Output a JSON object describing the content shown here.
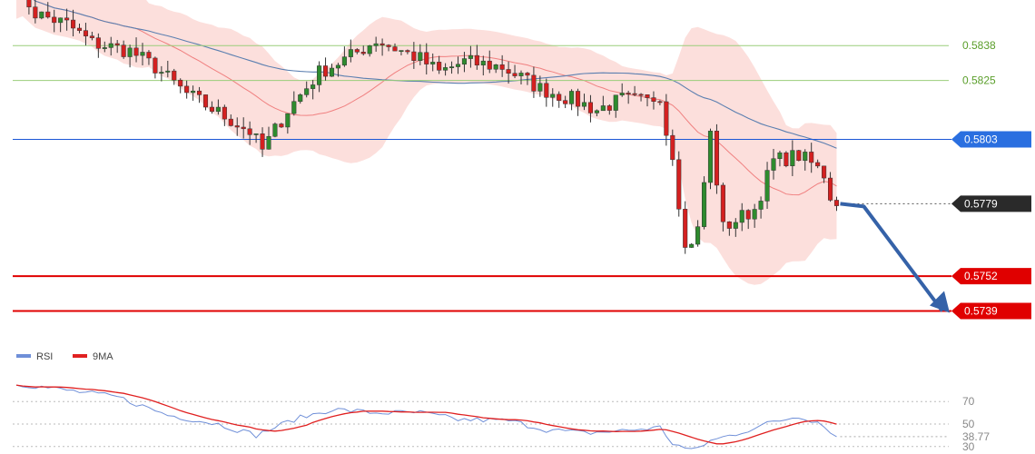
{
  "colors": {
    "bull": "#2e8b2e",
    "bear": "#d42020",
    "bb_fill": "#fbd4d0",
    "bb_mid": "#f08080",
    "ma_slow": "#5b7fb0",
    "resistance_lines": "#9acd7a",
    "resistance_text": "#5a9e2a",
    "pivot_line": "#1a56d6",
    "pivot_tag": "#2a6fe0",
    "support_line": "#e00000",
    "support_tag": "#e00000",
    "current_tag": "#2a2a2a",
    "arrow": "#3562a8",
    "rsi_line": "#6f8fd8",
    "rsi_ma_line": "#e02020"
  },
  "chart_data": {
    "type": "candlestick",
    "y_range": [
      0.5728,
      0.5855
    ],
    "levels": [
      {
        "value": 0.5838,
        "label": "0.5838",
        "kind": "resistance"
      },
      {
        "value": 0.5825,
        "label": "0.5825",
        "kind": "resistance"
      },
      {
        "value": 0.5803,
        "label": "0.5803",
        "kind": "pivot"
      },
      {
        "value": 0.5779,
        "label": "0.5779",
        "kind": "current"
      },
      {
        "value": 0.5752,
        "label": "0.5752",
        "kind": "support"
      },
      {
        "value": 0.5739,
        "label": "0.5739",
        "kind": "support"
      }
    ],
    "forecast_path": [
      0.5779,
      0.5778,
      0.5739
    ],
    "price_segments": [
      [
        0,
        0.5861
      ],
      [
        3,
        0.585
      ],
      [
        8,
        0.5846
      ],
      [
        12,
        0.5839
      ],
      [
        18,
        0.5836
      ],
      [
        22,
        0.583
      ],
      [
        27,
        0.582
      ],
      [
        32,
        0.5813
      ],
      [
        37,
        0.5806
      ],
      [
        39,
        0.5799
      ],
      [
        43,
        0.5814
      ],
      [
        48,
        0.5828
      ],
      [
        53,
        0.5834
      ],
      [
        57,
        0.584
      ],
      [
        60,
        0.5837
      ],
      [
        64,
        0.5833
      ],
      [
        67,
        0.5828
      ],
      [
        71,
        0.5832
      ],
      [
        77,
        0.583
      ],
      [
        83,
        0.5822
      ],
      [
        88,
        0.5818
      ],
      [
        92,
        0.5814
      ],
      [
        96,
        0.5818
      ],
      [
        100,
        0.5817
      ],
      [
        102,
        0.582
      ],
      [
        103,
        0.5806
      ],
      [
        104,
        0.5798
      ],
      [
        106,
        0.5762
      ],
      [
        108,
        0.5769
      ],
      [
        110,
        0.5805
      ],
      [
        112,
        0.577
      ],
      [
        117,
        0.5777
      ],
      [
        120,
        0.5795
      ],
      [
        124,
        0.5797
      ],
      [
        126,
        0.5794
      ],
      [
        128,
        0.579
      ],
      [
        129,
        0.5782
      ],
      [
        130,
        0.578
      ]
    ],
    "rsi": {
      "legend": [
        {
          "name": "RSI",
          "color_key": "rsi_line"
        },
        {
          "name": "9MA",
          "color_key": "rsi_ma_line"
        }
      ],
      "y_range": [
        25,
        100
      ],
      "ticks": [
        70,
        50,
        30
      ],
      "current": 38.77,
      "current_label": "38.77",
      "rsi_segments": [
        [
          0,
          86
        ],
        [
          8,
          80
        ],
        [
          16,
          74
        ],
        [
          24,
          58
        ],
        [
          32,
          50
        ],
        [
          38,
          40
        ],
        [
          44,
          54
        ],
        [
          50,
          63
        ],
        [
          57,
          60
        ],
        [
          64,
          60
        ],
        [
          70,
          54
        ],
        [
          78,
          53
        ],
        [
          84,
          45
        ],
        [
          90,
          42
        ],
        [
          96,
          44
        ],
        [
          102,
          47
        ],
        [
          104,
          33
        ],
        [
          107,
          26
        ],
        [
          110,
          35
        ],
        [
          115,
          43
        ],
        [
          120,
          52
        ],
        [
          124,
          57
        ],
        [
          127,
          52
        ],
        [
          130,
          40
        ]
      ]
    }
  }
}
